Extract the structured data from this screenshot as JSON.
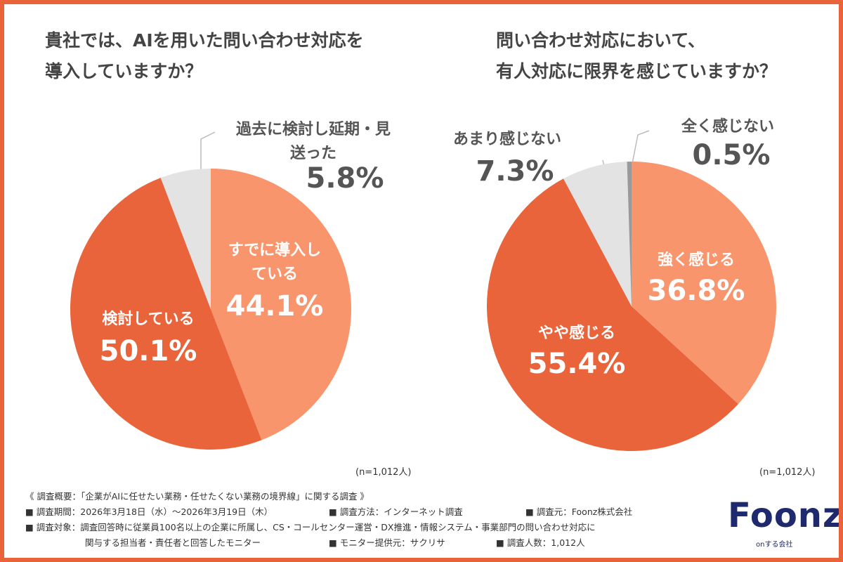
{
  "chart_data": [
    {
      "type": "pie",
      "title": [
        "貴社では、AIを用いた問い合わせ対応を",
        "導入していますか？"
      ],
      "categories": [
        "すでに導入している",
        "検討している",
        "過去に検討し延期・見送った"
      ],
      "values": [
        44.1,
        50.1,
        5.8
      ],
      "value_labels": [
        "44.1%",
        "50.1%",
        "5.8%"
      ],
      "colors": [
        "#f9956c",
        "#e9643a",
        "#e3e3e3"
      ],
      "note": "(n=1,012人)"
    },
    {
      "type": "pie",
      "title": [
        "問い合わせ対応において、",
        "有人対応に限界を感じていますか？"
      ],
      "categories": [
        "強く感じる",
        "やや感じる",
        "あまり感じない",
        "全く感じない"
      ],
      "values": [
        36.8,
        55.4,
        7.3,
        0.5
      ],
      "value_labels": [
        "36.8%",
        "55.4%",
        "7.3%",
        "0.5%"
      ],
      "colors": [
        "#f9956c",
        "#e9643a",
        "#e3e3e3",
        "#9a9a9a"
      ],
      "note": "(n=1,012人)"
    }
  ],
  "survey": [
    [
      "《 調査概要：「企業がAIに任せたい業務・任せたくない業務の境界線」に関する調査 》"
    ],
    [
      "■ 調査期間：2026年3月18日（水）〜2026年3月19日（木）",
      "■ 調査方法：インターネット調査",
      "■ 調査元：Foonz株式会社"
    ],
    [
      "■ 調査対象：調査回答時に従業員100名以上の企業に所属し、CS・コールセンター運営・DX推進・情報システム・事業部門の問い合わせ対応に"
    ],
    [
      "関与する担当者・責任者と回答したモニター",
      "■ モニター提供元：サクリサ",
      "■ 調査人数：1,012人"
    ]
  ],
  "logo": {
    "name": "Foonz",
    "tagline": "onする会社"
  }
}
